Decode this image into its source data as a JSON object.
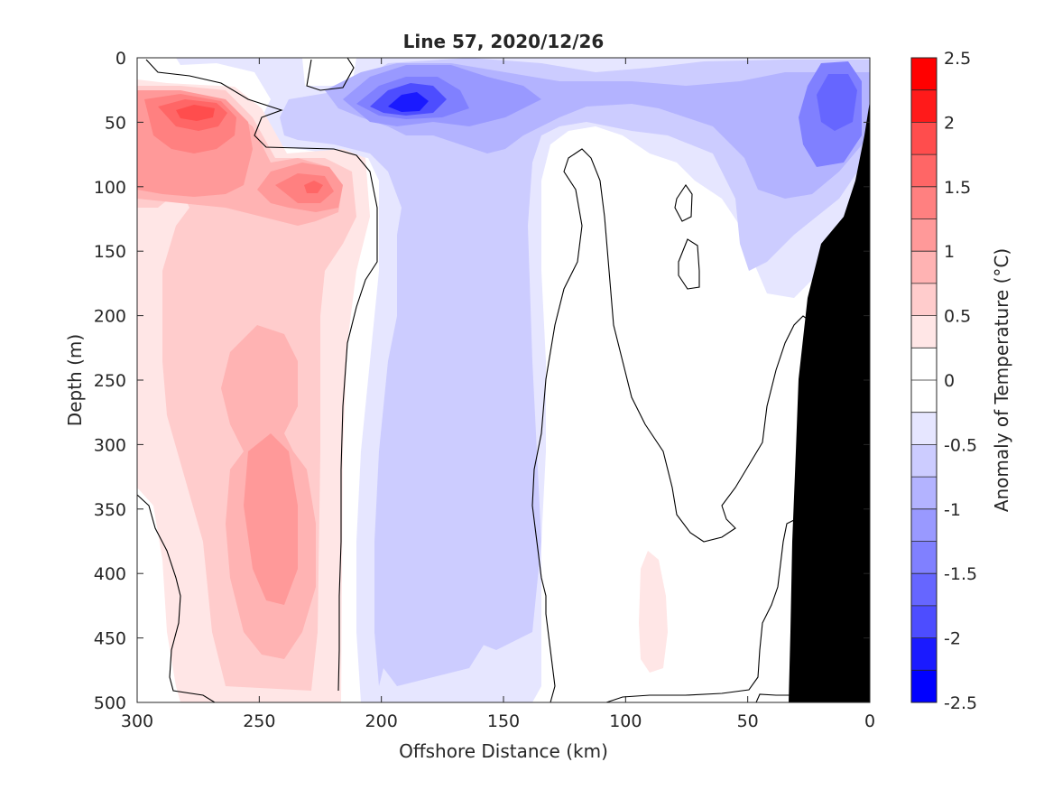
{
  "chart_data": {
    "type": "heatmap",
    "title": "Line 57, 2020/12/26",
    "xlabel": "Offshore Distance (km)",
    "ylabel": "Depth (m)",
    "xlim": [
      300,
      0
    ],
    "ylim": [
      0,
      500
    ],
    "x_direction": "reversed",
    "y_direction": "reversed (depth increases downward)",
    "x_ticks": [
      300,
      250,
      200,
      150,
      100,
      50,
      0
    ],
    "y_ticks": [
      0,
      50,
      100,
      150,
      200,
      250,
      300,
      350,
      400,
      450,
      500
    ],
    "grid": false,
    "colorbar": {
      "label": "Anomaly of Temperature (°C)",
      "range": [
        -2.5,
        2.5
      ],
      "ticks": [
        "2.5",
        "2",
        "1.5",
        "1",
        "0.5",
        "0",
        "-0.5",
        "-1",
        "-1.5",
        "-2",
        "-2.5"
      ],
      "levels": [
        -2.5,
        -2.25,
        -2,
        -1.75,
        -1.5,
        -1.25,
        -1,
        -0.75,
        -0.5,
        -0.25,
        0.25,
        0.5,
        0.75,
        1,
        1.25,
        1.5,
        1.75,
        2,
        2.25,
        2.5
      ],
      "colors_high_to_low": [
        "#ff0000",
        "#ff1a1a",
        "#ff4d4d",
        "#ff6666",
        "#ff8080",
        "#ff9999",
        "#ffb3b3",
        "#ffcccc",
        "#ffe6e6",
        "#ffffff",
        "#ffffff",
        "#e6e6ff",
        "#ccccff",
        "#b3b3ff",
        "#9999ff",
        "#8080ff",
        "#6666ff",
        "#4d4dff",
        "#1a1aff",
        "#0000ff"
      ]
    },
    "features": [
      {
        "name": "warm anomaly core",
        "x": 280,
        "y": 40,
        "value": 1.75
      },
      {
        "name": "warm anomaly",
        "x": 225,
        "y": 100,
        "value": 1.5
      },
      {
        "name": "warm column",
        "x": 250,
        "y": 300,
        "value": 0.9
      },
      {
        "name": "cold anomaly core",
        "x": 185,
        "y": 35,
        "value": -1.75
      },
      {
        "name": "cold column",
        "x": 165,
        "y": 350,
        "value": -0.7
      },
      {
        "name": "cold nearshore",
        "x": 15,
        "y": 40,
        "value": -1.25
      }
    ],
    "bathymetry_fill": "#000000",
    "zero_contour_color": "#000000"
  }
}
